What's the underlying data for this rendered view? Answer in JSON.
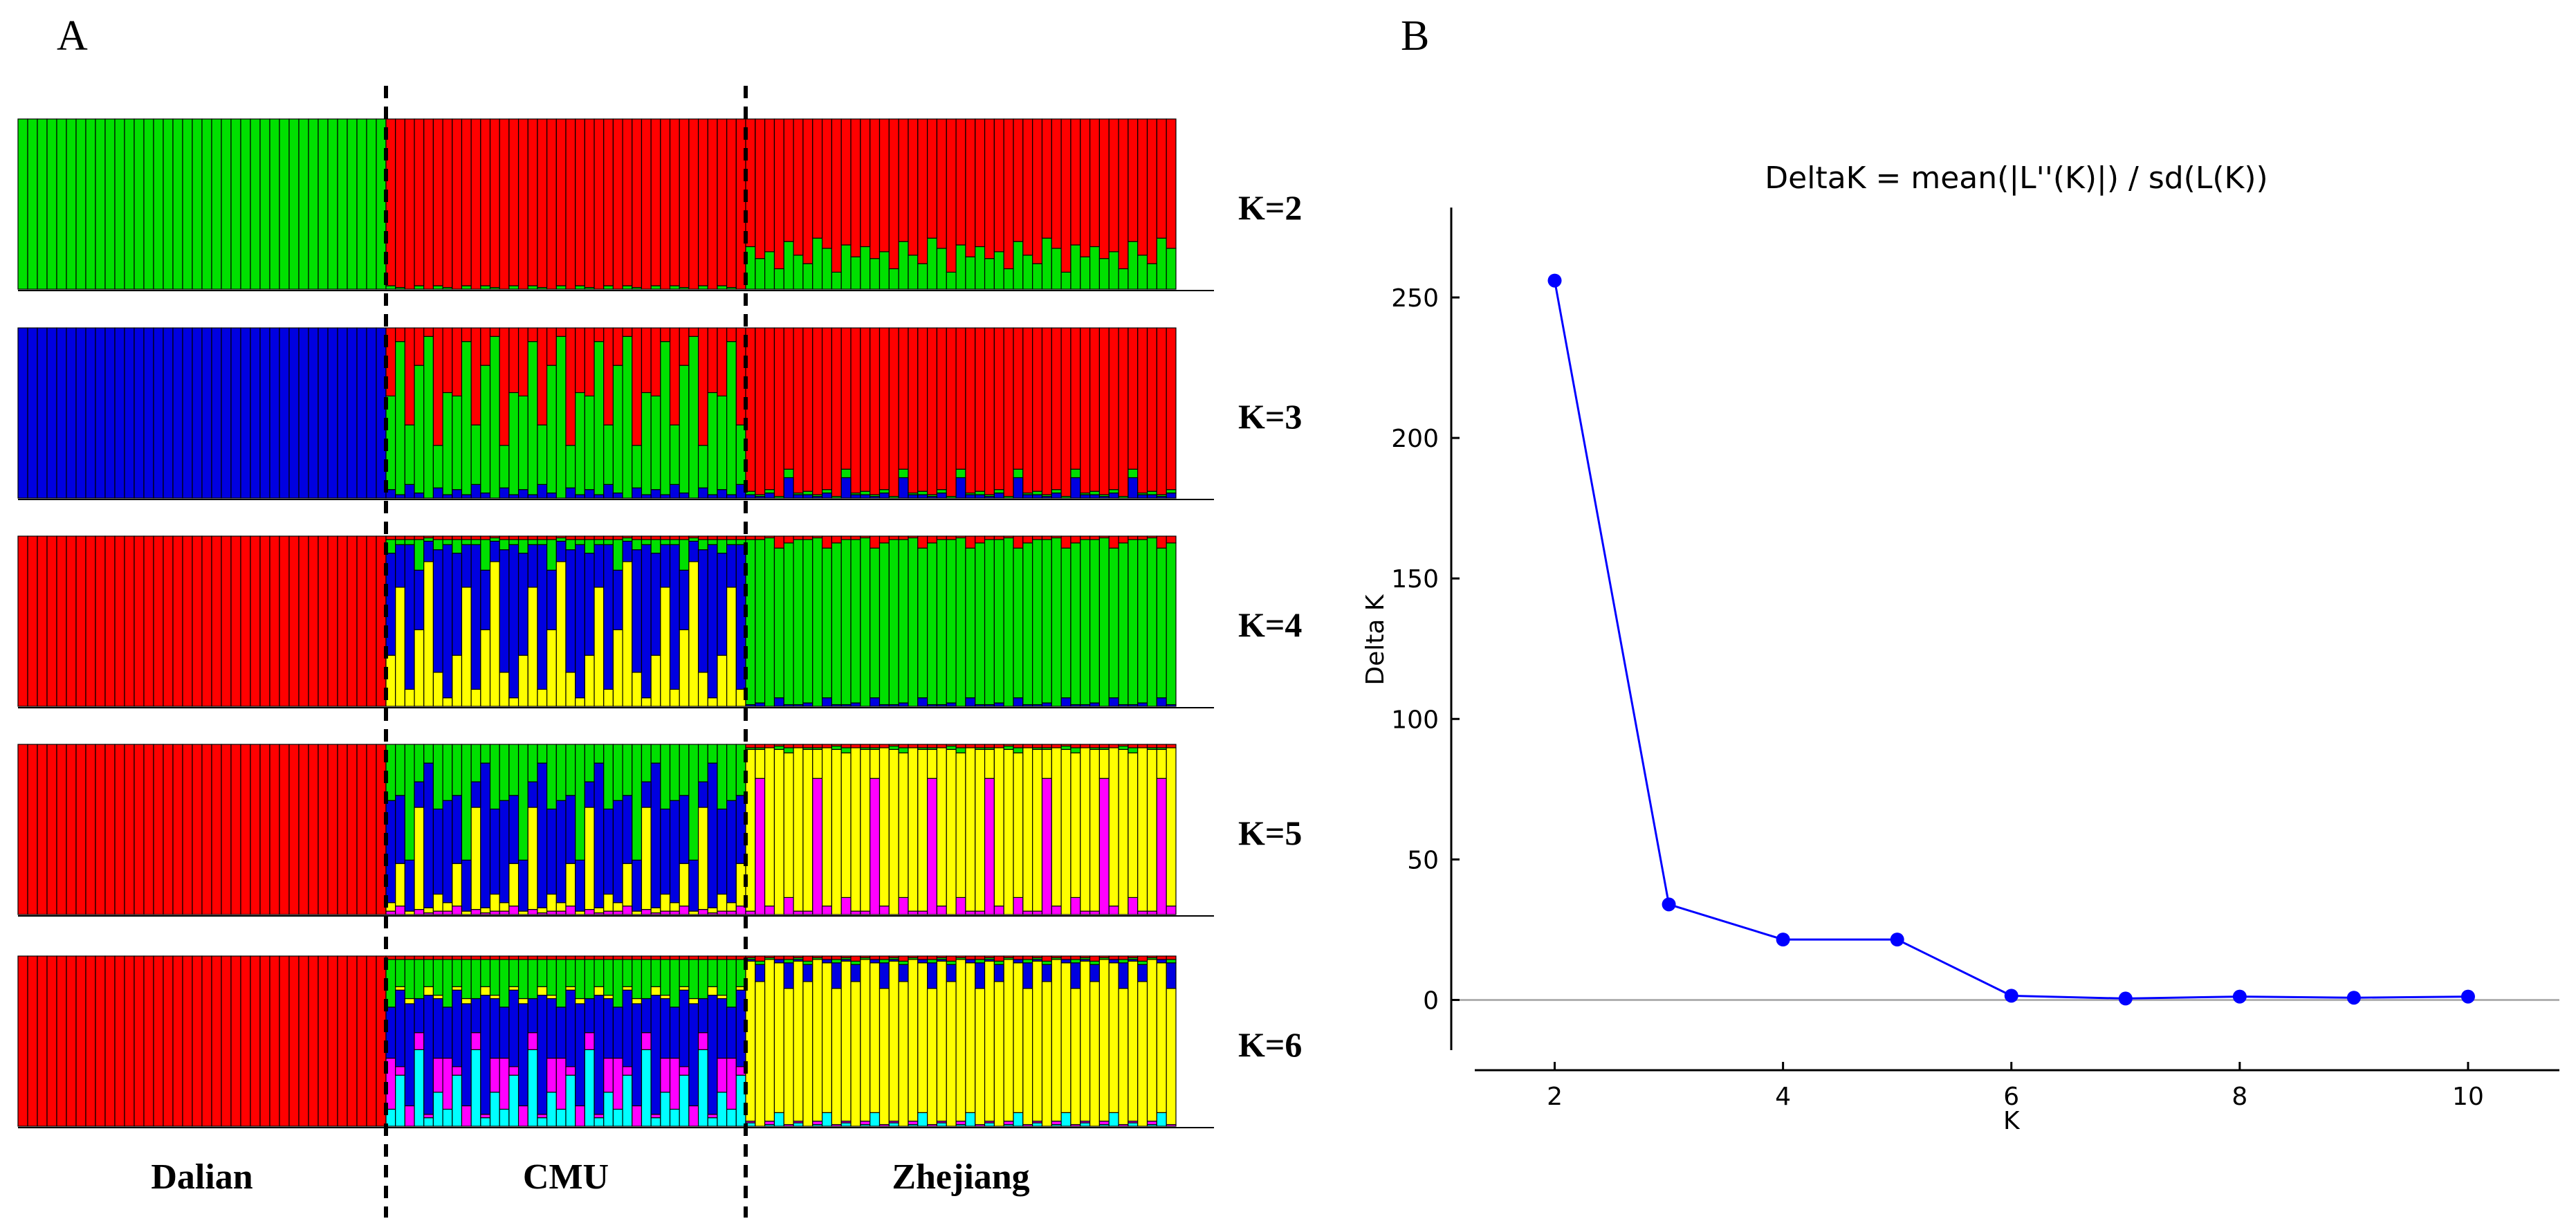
{
  "panel_a": {
    "label": "A",
    "colors": {
      "red": "#ff0000",
      "green": "#00e000",
      "blue": "#0000e0",
      "yellow": "#ffff00",
      "magenta": "#ff00ff",
      "cyan": "#00ffff"
    },
    "groups": [
      {
        "name": "Dalian",
        "count": 38
      },
      {
        "name": "CMU",
        "count": 38
      },
      {
        "name": "Zhejiang",
        "count": 45
      }
    ],
    "rows": [
      {
        "label": "K=2",
        "segments": [
          {
            "group": 0,
            "order": [
              "green"
            ],
            "pattern": [
              {
                "green": 1.0
              }
            ]
          },
          {
            "group": 1,
            "order": [
              "green",
              "red"
            ],
            "pattern": [
              {
                "green": 0.02
              },
              {
                "green": 0.01
              },
              {
                "green": 0.0
              },
              {
                "green": 0.02
              },
              {
                "green": 0.0
              }
            ]
          },
          {
            "group": 2,
            "order": [
              "green",
              "red"
            ],
            "pattern": [
              {
                "green": 0.25
              },
              {
                "green": 0.18
              },
              {
                "green": 0.22
              },
              {
                "green": 0.12
              },
              {
                "green": 0.28
              },
              {
                "green": 0.2
              },
              {
                "green": 0.15
              },
              {
                "green": 0.3
              },
              {
                "green": 0.24
              },
              {
                "green": 0.1
              },
              {
                "green": 0.26
              },
              {
                "green": 0.19
              }
            ]
          }
        ]
      },
      {
        "label": "K=3",
        "segments": [
          {
            "group": 0,
            "order": [
              "blue"
            ],
            "pattern": [
              {
                "blue": 1.0
              }
            ]
          },
          {
            "group": 1,
            "order": [
              "blue",
              "green",
              "red"
            ],
            "pattern": [
              {
                "blue": 0.05,
                "green": 0.55
              },
              {
                "blue": 0.02,
                "green": 0.9
              },
              {
                "blue": 0.08,
                "green": 0.35
              },
              {
                "blue": 0.03,
                "green": 0.75
              },
              {
                "blue": 0.0,
                "green": 0.95
              },
              {
                "blue": 0.06,
                "green": 0.25
              },
              {
                "blue": 0.02,
                "green": 0.6
              }
            ]
          }
        ],
        "segments_extra": [
          {
            "group": 2,
            "order": [
              "blue",
              "green",
              "red"
            ],
            "pattern": [
              {
                "blue": 0.02,
                "green": 0.02
              },
              {
                "blue": 0.01,
                "green": 0.01
              },
              {
                "blue": 0.03,
                "green": 0.02
              },
              {
                "blue": 0.0,
                "green": 0.01
              },
              {
                "blue": 0.12,
                "green": 0.05
              },
              {
                "blue": 0.02,
                "green": 0.01
              }
            ]
          }
        ]
      },
      {
        "label": "K=4",
        "segments": [
          {
            "group": 0,
            "order": [
              "red"
            ],
            "pattern": [
              {
                "red": 1.0
              }
            ]
          },
          {
            "group": 1,
            "order": [
              "yellow",
              "blue",
              "green",
              "red"
            ],
            "pattern": [
              {
                "yellow": 0.3,
                "blue": 0.6,
                "green": 0.08
              },
              {
                "yellow": 0.7,
                "blue": 0.25,
                "green": 0.03
              },
              {
                "yellow": 0.1,
                "blue": 0.85,
                "green": 0.03
              },
              {
                "yellow": 0.45,
                "blue": 0.35,
                "green": 0.18
              },
              {
                "yellow": 0.85,
                "blue": 0.12,
                "green": 0.02
              },
              {
                "yellow": 0.2,
                "blue": 0.72,
                "green": 0.06
              },
              {
                "yellow": 0.05,
                "blue": 0.9,
                "green": 0.03
              }
            ]
          },
          {
            "group": 2,
            "order": [
              "blue",
              "green",
              "red"
            ],
            "pattern": [
              {
                "blue": 0.01,
                "green": 0.97
              },
              {
                "blue": 0.02,
                "green": 0.96
              },
              {
                "blue": 0.0,
                "green": 0.99
              },
              {
                "blue": 0.05,
                "green": 0.88
              },
              {
                "blue": 0.01,
                "green": 0.95
              }
            ]
          }
        ]
      },
      {
        "label": "K=5",
        "segments": [
          {
            "group": 0,
            "order": [
              "red"
            ],
            "pattern": [
              {
                "red": 1.0
              }
            ]
          },
          {
            "group": 1,
            "order": [
              "magenta",
              "yellow",
              "blue",
              "green",
              "red"
            ],
            "pattern": [
              {
                "magenta": 0.02,
                "yellow": 0.05,
                "blue": 0.6,
                "green": 0.33
              },
              {
                "magenta": 0.05,
                "yellow": 0.25,
                "blue": 0.4,
                "green": 0.3
              },
              {
                "magenta": 0.0,
                "yellow": 0.02,
                "blue": 0.3,
                "green": 0.68
              },
              {
                "magenta": 0.03,
                "yellow": 0.6,
                "blue": 0.15,
                "green": 0.22
              },
              {
                "magenta": 0.01,
                "yellow": 0.03,
                "blue": 0.85,
                "green": 0.11
              },
              {
                "magenta": 0.02,
                "yellow": 0.1,
                "blue": 0.5,
                "green": 0.38
              }
            ]
          },
          {
            "group": 2,
            "order": [
              "magenta",
              "yellow",
              "green",
              "red"
            ],
            "pattern": [
              {
                "magenta": 0.02,
                "yellow": 0.95,
                "green": 0.01
              },
              {
                "magenta": 0.8,
                "yellow": 0.17,
                "green": 0.01
              },
              {
                "magenta": 0.05,
                "yellow": 0.93,
                "green": 0.0
              },
              {
                "magenta": 0.0,
                "yellow": 0.97,
                "green": 0.02
              },
              {
                "magenta": 0.1,
                "yellow": 0.85,
                "green": 0.03
              },
              {
                "magenta": 0.02,
                "yellow": 0.96,
                "green": 0.0
              }
            ]
          }
        ]
      },
      {
        "label": "K=6",
        "segments": [
          {
            "group": 0,
            "order": [
              "red"
            ],
            "pattern": [
              {
                "red": 1.0
              }
            ]
          },
          {
            "group": 1,
            "order": [
              "cyan",
              "magenta",
              "blue",
              "yellow",
              "green",
              "red"
            ],
            "pattern": [
              {
                "cyan": 0.1,
                "magenta": 0.3,
                "blue": 0.3,
                "yellow": 0.0,
                "green": 0.28
              },
              {
                "cyan": 0.3,
                "magenta": 0.05,
                "blue": 0.45,
                "yellow": 0.02,
                "green": 0.16
              },
              {
                "cyan": 0.0,
                "magenta": 0.12,
                "blue": 0.6,
                "yellow": 0.03,
                "green": 0.23
              },
              {
                "cyan": 0.45,
                "magenta": 0.1,
                "blue": 0.2,
                "yellow": 0.0,
                "green": 0.23
              },
              {
                "cyan": 0.05,
                "magenta": 0.02,
                "blue": 0.7,
                "yellow": 0.05,
                "green": 0.16
              },
              {
                "cyan": 0.2,
                "magenta": 0.2,
                "blue": 0.35,
                "yellow": 0.02,
                "green": 0.21
              }
            ]
          },
          {
            "group": 2,
            "order": [
              "cyan",
              "magenta",
              "yellow",
              "blue",
              "green",
              "red"
            ],
            "pattern": [
              {
                "cyan": 0.02,
                "magenta": 0.01,
                "yellow": 0.94,
                "blue": 0.01,
                "green": 0.01
              },
              {
                "cyan": 0.0,
                "magenta": 0.0,
                "yellow": 0.85,
                "blue": 0.1,
                "green": 0.02
              },
              {
                "cyan": 0.01,
                "magenta": 0.02,
                "yellow": 0.95,
                "blue": 0.0,
                "green": 0.01
              },
              {
                "cyan": 0.08,
                "magenta": 0.0,
                "yellow": 0.88,
                "blue": 0.02,
                "green": 0.0
              },
              {
                "cyan": 0.0,
                "magenta": 0.01,
                "yellow": 0.8,
                "blue": 0.15,
                "green": 0.02
              }
            ]
          }
        ]
      }
    ]
  },
  "panel_b": {
    "label": "B",
    "line_color": "#0000ff",
    "grid_color": "#b0b0b0"
  },
  "chart_data": {
    "type": "line",
    "title": "DeltaK = mean(|L''(K)|) / sd(L(K))",
    "xlabel": "K",
    "ylabel": "Delta K",
    "x": [
      2,
      3,
      4,
      5,
      6,
      7,
      8,
      9,
      10
    ],
    "y": [
      256,
      34,
      21.5,
      21.5,
      1.5,
      0.5,
      1.2,
      0.8,
      1.2
    ],
    "xticks": [
      "2",
      "4",
      "6",
      "8",
      "10"
    ],
    "yticks": [
      "0",
      "50",
      "100",
      "150",
      "200",
      "250"
    ],
    "xlim": [
      1.3,
      10.8
    ],
    "ylim": [
      -25,
      282
    ]
  }
}
